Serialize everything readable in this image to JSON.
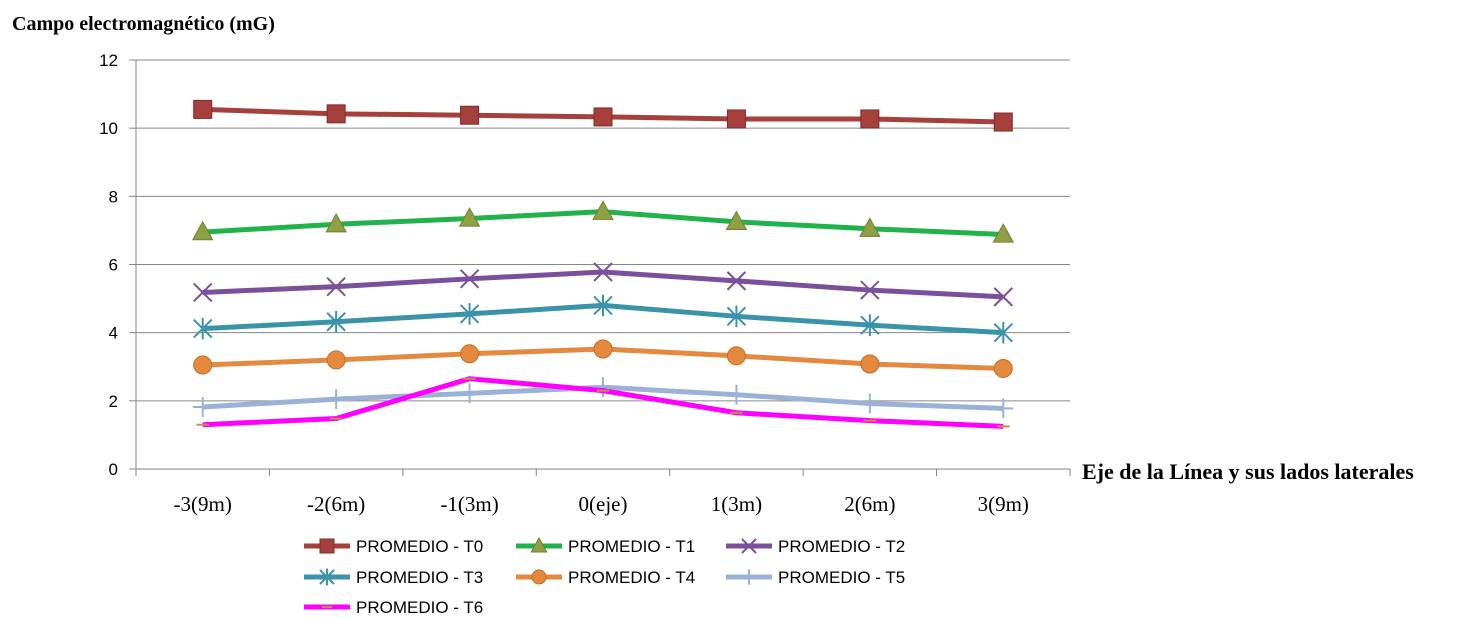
{
  "chart_data": {
    "type": "line",
    "title": "",
    "ylabel": "Campo electromagnético (mG)",
    "xlabel": "Eje de la Línea y sus lados laterales",
    "categories": [
      "-3(9m)",
      "-2(6m)",
      "-1(3m)",
      "0(eje)",
      "1(3m)",
      "2(6m)",
      "3(9m)"
    ],
    "ylim": [
      0,
      12
    ],
    "yticks": [
      "0",
      "2",
      "4",
      "6",
      "8",
      "10",
      "12"
    ],
    "grid": true,
    "legend_position": "bottom",
    "series": [
      {
        "name": "PROMEDIO - T0",
        "color": "#A6403C",
        "marker": "square",
        "values": [
          10.55,
          10.42,
          10.38,
          10.33,
          10.27,
          10.27,
          10.18
        ]
      },
      {
        "name": "PROMEDIO - T1",
        "color": "#22B24C",
        "marker": "triangle",
        "values": [
          6.95,
          7.18,
          7.35,
          7.55,
          7.25,
          7.05,
          6.88
        ]
      },
      {
        "name": "PROMEDIO - T2",
        "color": "#7A509C",
        "marker": "x",
        "values": [
          5.18,
          5.35,
          5.58,
          5.78,
          5.52,
          5.25,
          5.05
        ]
      },
      {
        "name": "PROMEDIO - T3",
        "color": "#3A93A8",
        "marker": "asterisk",
        "values": [
          4.12,
          4.32,
          4.55,
          4.8,
          4.48,
          4.22,
          4.0
        ]
      },
      {
        "name": "PROMEDIO - T4",
        "color": "#E4893E",
        "marker": "circle",
        "values": [
          3.05,
          3.2,
          3.38,
          3.52,
          3.32,
          3.08,
          2.95
        ]
      },
      {
        "name": "PROMEDIO - T5",
        "color": "#9BB1D6",
        "marker": "plus",
        "values": [
          1.82,
          2.05,
          2.22,
          2.4,
          2.18,
          1.92,
          1.78
        ]
      },
      {
        "name": "PROMEDIO - T6",
        "color": "#FF00FF",
        "marker": "dash",
        "values": [
          1.3,
          1.48,
          2.65,
          2.3,
          1.65,
          1.42,
          1.25
        ]
      }
    ]
  }
}
